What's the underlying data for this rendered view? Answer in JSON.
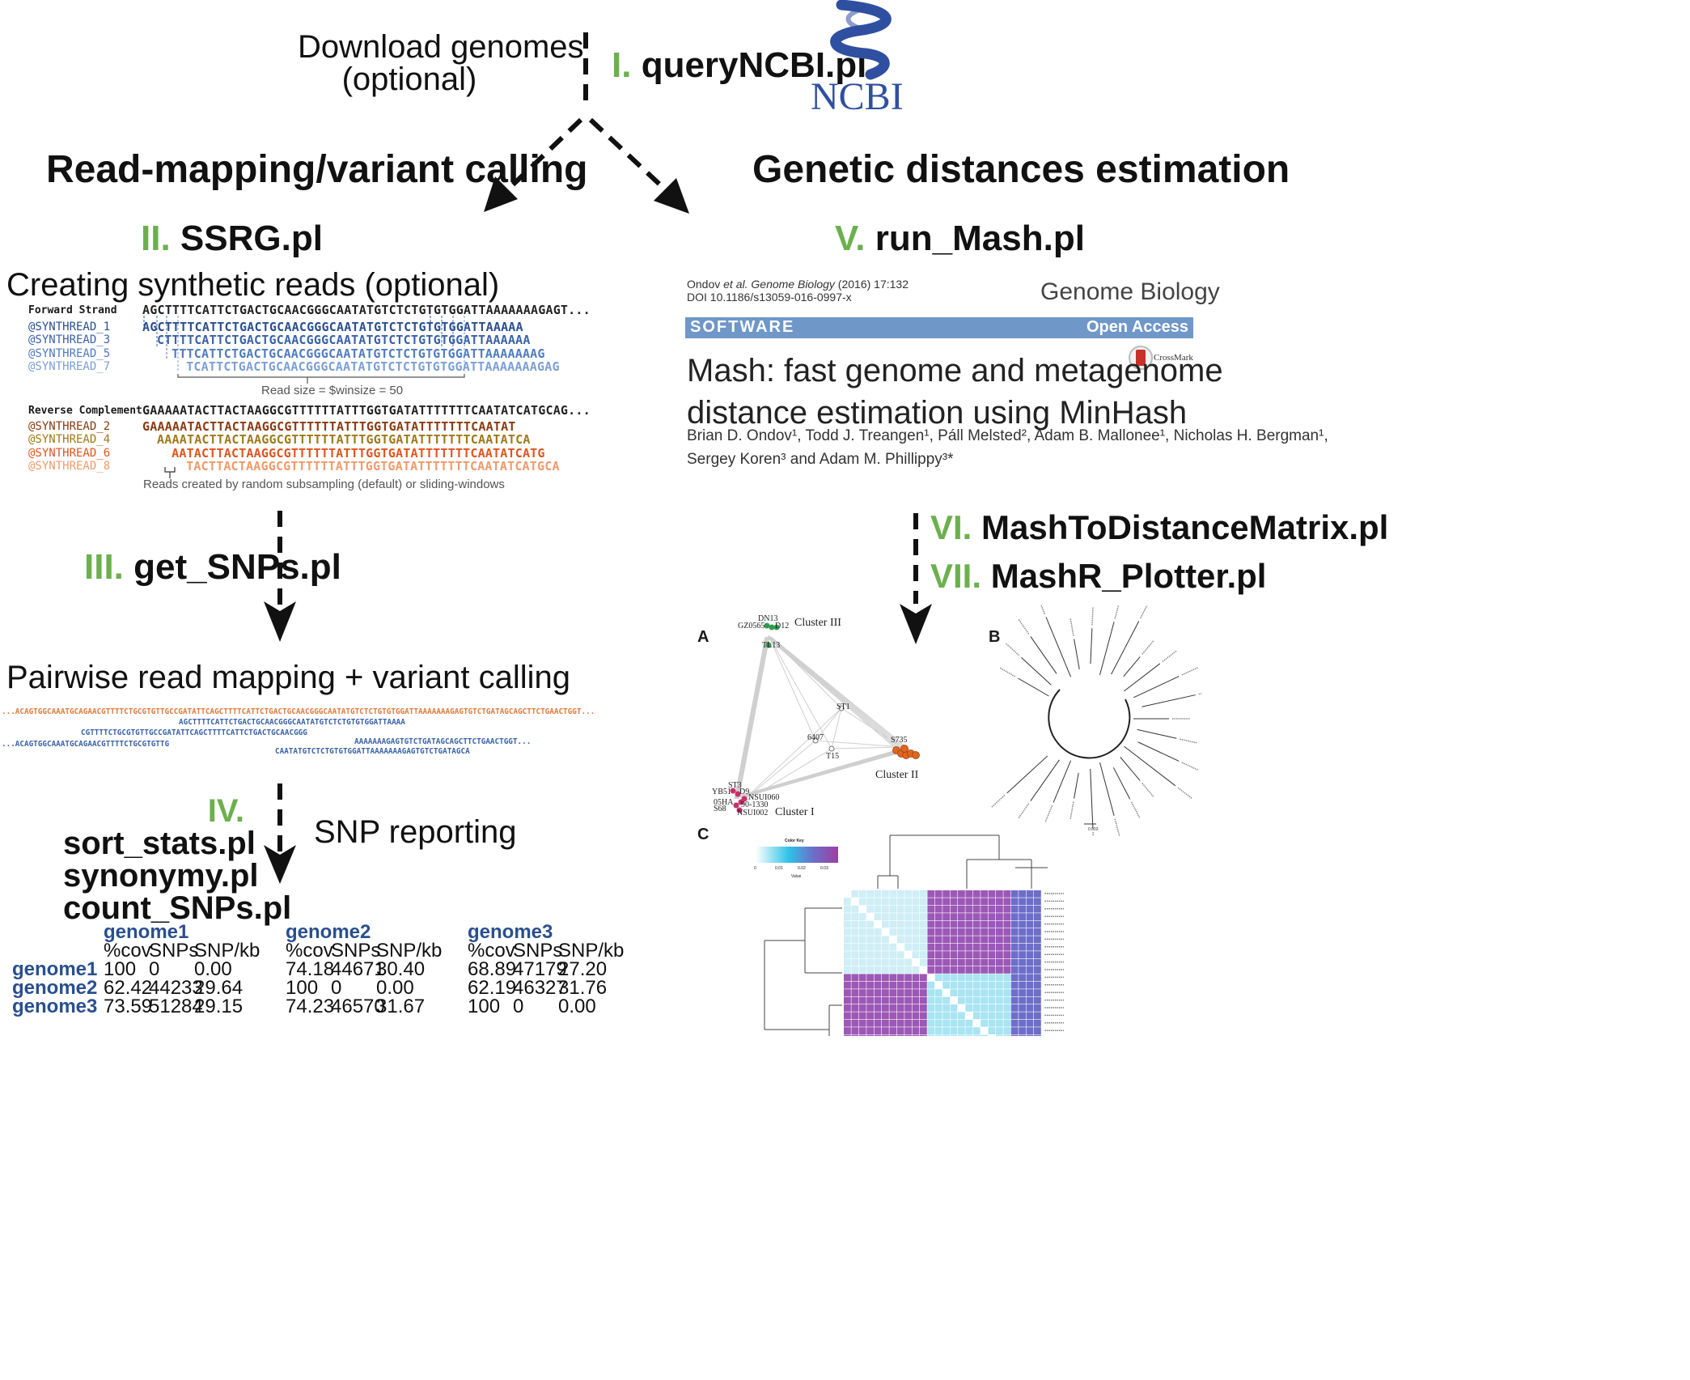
{
  "download": {
    "line1": "Download genomes",
    "line2": "(optional)"
  },
  "step1": {
    "num": "I.",
    "script": "queryNCBI.pl"
  },
  "ncbi_logo": "NCBI",
  "left_heading": "Read-mapping/variant calling",
  "right_heading": "Genetic distances estimation",
  "step2": {
    "num": "II.",
    "script": "SSRG.pl"
  },
  "step5": {
    "num": "V.",
    "script": "run_Mash.pl"
  },
  "synthetic": {
    "title": "Creating synthetic reads (optional)",
    "forward_label": "Forward Strand",
    "forward_seq": "AGCTTTTCATTCTGACTGCAACGGGCAATATGTCTCTGTGTGGATTAAAAAAAGAGT...",
    "forward_reads": [
      {
        "id": "@SYNTHREAD_1",
        "seq": "AGCTTTTCATTCTGACTGCAACGGGCAATATGTCTCTGTGTGGATTAAAAA",
        "color": "#2a4f8f"
      },
      {
        "id": "@SYNTHREAD_3",
        "seq": "CTTTTCATTCTGACTGCAACGGGCAATATGTCTCTGTGTGGATTAAAAAA",
        "color": "#3a62a8"
      },
      {
        "id": "@SYNTHREAD_5",
        "seq": "TTTCATTCTGACTGCAACGGGCAATATGTCTCTGTGTGGATTAAAAAAAG",
        "color": "#4f7bc0"
      },
      {
        "id": "@SYNTHREAD_7",
        "seq": "TCATTCTGACTGCAACGGGCAATATGTCTCTGTGTGGATTAAAAAAAGAG",
        "color": "#7b9fd6"
      }
    ],
    "read_size": "Read size = $winsize = 50",
    "reverse_label": "Reverse Complement",
    "reverse_seq": "GAAAAATACTTACTAAGGCGTTTTTTATTTGGTGATATTTTTTTCAATATCATGCAG...",
    "reverse_reads": [
      {
        "id": "@SYNTHREAD_2",
        "seq": "GAAAAATACTTACTAAGGCGTTTTTTATTTGGTGATATTTTTTTCAATAT",
        "color": "#8a3a12"
      },
      {
        "id": "@SYNTHREAD_4",
        "seq": "AAAATACTTACTAAGGCGTTTTTTATTTGGTGATATTTTTTTCAATATCA",
        "color": "#a0781a"
      },
      {
        "id": "@SYNTHREAD_6",
        "seq": "AATACTTACTAAGGCGTTTTTTATTTGGTGATATTTTTTTCAATATCATG",
        "color": "#e0541e"
      },
      {
        "id": "@SYNTHREAD_8",
        "seq": "TACTTACTAAGGCGTTTTTTATTTGGTGATATTTTTTTCAATATCATGCA",
        "color": "#f09a6a"
      }
    ],
    "caption": "Reads created by random subsampling (default) or sliding-windows"
  },
  "step3": {
    "num": "III.",
    "script": "get_SNPs.pl"
  },
  "pairwise": {
    "title": "Pairwise read mapping + variant calling",
    "ref": "...ACAGTGGCAAATGCAGAACGTTTTCTGCGTGTTGCCGATATTCAGCTTTTCATTCTGACTGCAACGGGCAATATGTCTCTGTGTGGATTAAAAAAAGAGTGTCTGATAGCAGCTTCTGAACTGGT...",
    "r1": "AGCTTTTCATTCTGACTGCAACGGGCAATATGTCTCTGTGTGGATTAAAA",
    "r2": "CGTTTTCTGCGTGTTGCCGATATTCAGCTTTTCATTCTGACTGCAACGGG",
    "r3": "...ACAGTGGCAAATGCAGAACGTTTTCTGCGTGTTG",
    "r4": "AAAAAAAGAGTGTCTGATAGCAGCTTCTGAACTGGT...",
    "r5": "CAATATGTCTCTGTGTGGATTAAAAAAAGAGTGTCTGATAGCA"
  },
  "step4": {
    "num": "IV.",
    "scripts": [
      "sort_stats.pl",
      "synonymy.pl",
      "count_SNPs.pl"
    ]
  },
  "snp_reporting": "SNP reporting",
  "snp_table": {
    "col_groups": [
      "genome1",
      "genome2",
      "genome3"
    ],
    "subheaders": [
      "%cov",
      "SNPs",
      "SNP/kb"
    ],
    "rows": [
      {
        "name": "genome1",
        "cells": [
          [
            "100",
            "0",
            "0.00"
          ],
          [
            "74.18",
            "44671",
            "30.40"
          ],
          [
            "68.89",
            "47179",
            "27.20"
          ]
        ]
      },
      {
        "name": "genome2",
        "cells": [
          [
            "62.42",
            "44233",
            "29.64"
          ],
          [
            "100",
            "0",
            "0.00"
          ],
          [
            "62.19",
            "46327",
            "31.76"
          ]
        ]
      },
      {
        "name": "genome3",
        "cells": [
          [
            "73.59",
            "51284",
            "29.15"
          ],
          [
            "74.23",
            "46570",
            "31.67"
          ],
          [
            "100",
            "0",
            "0.00"
          ]
        ]
      }
    ]
  },
  "paper": {
    "citation_author": "Ondov ",
    "citation_etal": "et al.",
    "citation_journal": " Genome Biology",
    "citation_rest": "  (2016) 17:132",
    "doi": "DOI 10.1186/s13059-016-0997-x",
    "journal": "Genome Biology",
    "banner_left": "SOFTWARE",
    "banner_right": "Open Access",
    "crossmark": "CrossMark",
    "title_line1": "Mash: fast genome and metagenome",
    "title_line2": "distance estimation using MinHash",
    "authors_line1": "Brian D. Ondov¹, Todd J. Treangen¹, Páll Melsted², Adam B. Mallonee¹, Nicholas H. Bergman¹,",
    "authors_line2": "Sergey Koren³ and Adam M. Phillippy³*"
  },
  "step6": {
    "num": "VI.",
    "script": "MashToDistanceMatrix.pl"
  },
  "step7": {
    "num": "VII.",
    "script": "MashR_Plotter.pl"
  },
  "panelA": {
    "label": "A",
    "clusters": [
      "Cluster III",
      "Cluster II",
      "Cluster I"
    ],
    "nodes": [
      "DN13",
      "GZ0565",
      "D12",
      "TL13",
      "ST1",
      "6407",
      "T15",
      "S735",
      "ST3",
      "YB51",
      "D9",
      "NSUI060",
      "05HA",
      "90-1330",
      "S68",
      "NSUI002"
    ],
    "colors": {
      "green": "#2e9b4f",
      "orange": "#e0661e",
      "pink": "#c8306a",
      "edge": "#cfcfcf"
    }
  },
  "panelB": {
    "label": "B",
    "scale": "0.003"
  },
  "panelC": {
    "label": "C",
    "color_key_title": "Color Key",
    "color_key_ticks": [
      "0",
      "0.01",
      "0.02",
      "0.03"
    ],
    "color_key_xlabel": "Value",
    "colors": {
      "low": "#ffffff",
      "mid": "#2ec3e6",
      "high": "#8a3a9a",
      "block": "#6d6ec8"
    }
  }
}
